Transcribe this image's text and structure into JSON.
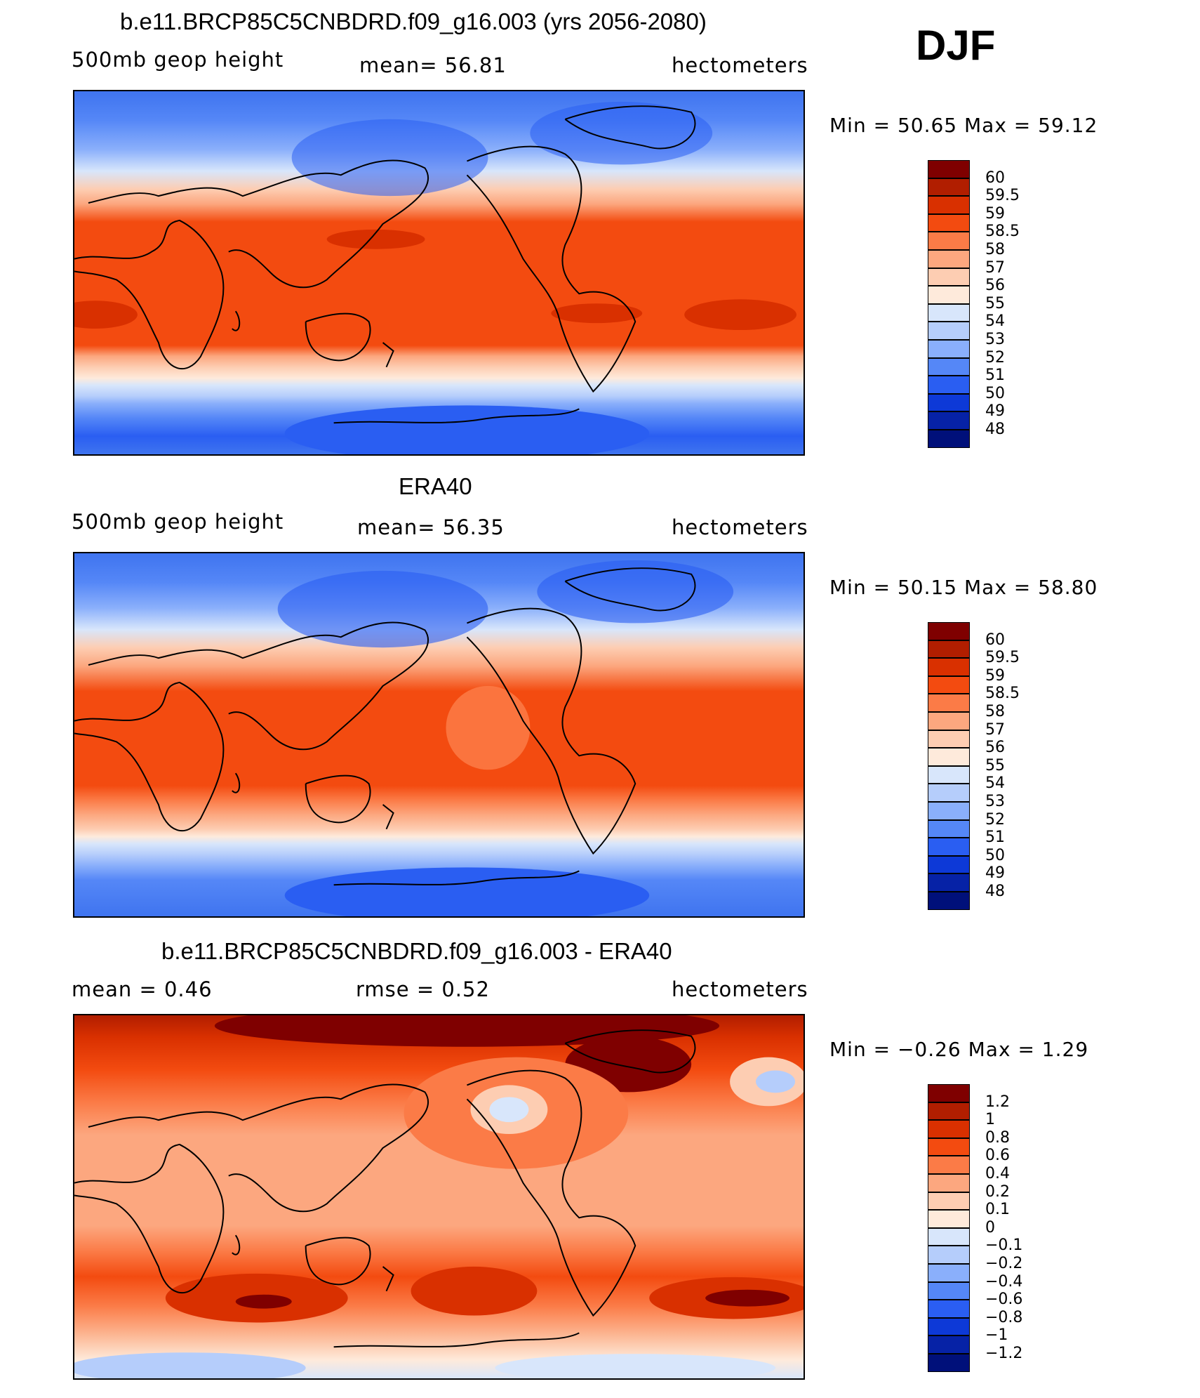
{
  "season": "DJF",
  "panels": [
    {
      "id": "model",
      "title": "b.e11.BRCP85C5CNBDRD.f09_g16.003 (yrs 2056-2080)",
      "left_label": "500mb  geop  height",
      "center_label": "mean=   56.81",
      "units": "hectometers",
      "minmax": "Min  =    50.65  Max  =    59.12"
    },
    {
      "id": "obs",
      "title": "ERA40",
      "left_label": "500mb  geop  height",
      "center_label": "mean=   56.35",
      "units": "hectometers",
      "minmax": "Min  =    50.15  Max  =    58.80"
    },
    {
      "id": "diff",
      "title": "b.e11.BRCP85C5CNBDRD.f09_g16.003 - ERA40",
      "left_label": "mean  =     0.46",
      "center_label": "rmse  =     0.52",
      "units": "hectometers",
      "minmax": "Min  =   −0.26  Max  =     1.29"
    }
  ],
  "chart_data": [
    {
      "type": "heatmap",
      "title": "b.e11.BRCP85C5CNBDRD.f09_g16.003 (yrs 2056-2080)",
      "variable": "500mb geop height",
      "units": "hectometers",
      "mean": 56.81,
      "min": 50.65,
      "max": 59.12,
      "season": "DJF",
      "colorbar_levels": [
        "60",
        "59.5",
        "59",
        "58.5",
        "58",
        "57",
        "56",
        "55",
        "54",
        "53",
        "52",
        "51",
        "50",
        "49",
        "48"
      ],
      "colorbar_colors": [
        "#7f0000",
        "#b11e00",
        "#d93000",
        "#f34b10",
        "#fb7b47",
        "#fca77f",
        "#fdcdb2",
        "#feeadb",
        "#d8e6fb",
        "#b5cdfb",
        "#8aaffb",
        "#5587f7",
        "#2a5ef2",
        "#0d39d7",
        "#0622a6",
        "#00107a"
      ]
    },
    {
      "type": "heatmap",
      "title": "ERA40",
      "variable": "500mb geop height",
      "units": "hectometers",
      "mean": 56.35,
      "min": 50.15,
      "max": 58.8,
      "season": "DJF",
      "colorbar_levels": [
        "60",
        "59.5",
        "59",
        "58.5",
        "58",
        "57",
        "56",
        "55",
        "54",
        "53",
        "52",
        "51",
        "50",
        "49",
        "48"
      ],
      "colorbar_colors": [
        "#7f0000",
        "#b11e00",
        "#d93000",
        "#f34b10",
        "#fb7b47",
        "#fca77f",
        "#fdcdb2",
        "#feeadb",
        "#d8e6fb",
        "#b5cdfb",
        "#8aaffb",
        "#5587f7",
        "#2a5ef2",
        "#0d39d7",
        "#0622a6",
        "#00107a"
      ]
    },
    {
      "type": "heatmap",
      "title": "b.e11.BRCP85C5CNBDRD.f09_g16.003 - ERA40",
      "units": "hectometers",
      "mean": 0.46,
      "rmse": 0.52,
      "min": -0.26,
      "max": 1.29,
      "season": "DJF",
      "colorbar_levels": [
        "1.2",
        "1",
        "0.8",
        "0.6",
        "0.4",
        "0.2",
        "0.1",
        "0",
        "−0.1",
        "−0.2",
        "−0.4",
        "−0.6",
        "−0.8",
        "−1",
        "−1.2"
      ],
      "colorbar_colors": [
        "#7f0000",
        "#b11e00",
        "#d93000",
        "#f34b10",
        "#fb7b47",
        "#fca77f",
        "#fdcdb2",
        "#feeadb",
        "#d8e6fb",
        "#b5cdfb",
        "#8aaffb",
        "#5587f7",
        "#2a5ef2",
        "#0d39d7",
        "#0622a6",
        "#00107a"
      ]
    }
  ]
}
